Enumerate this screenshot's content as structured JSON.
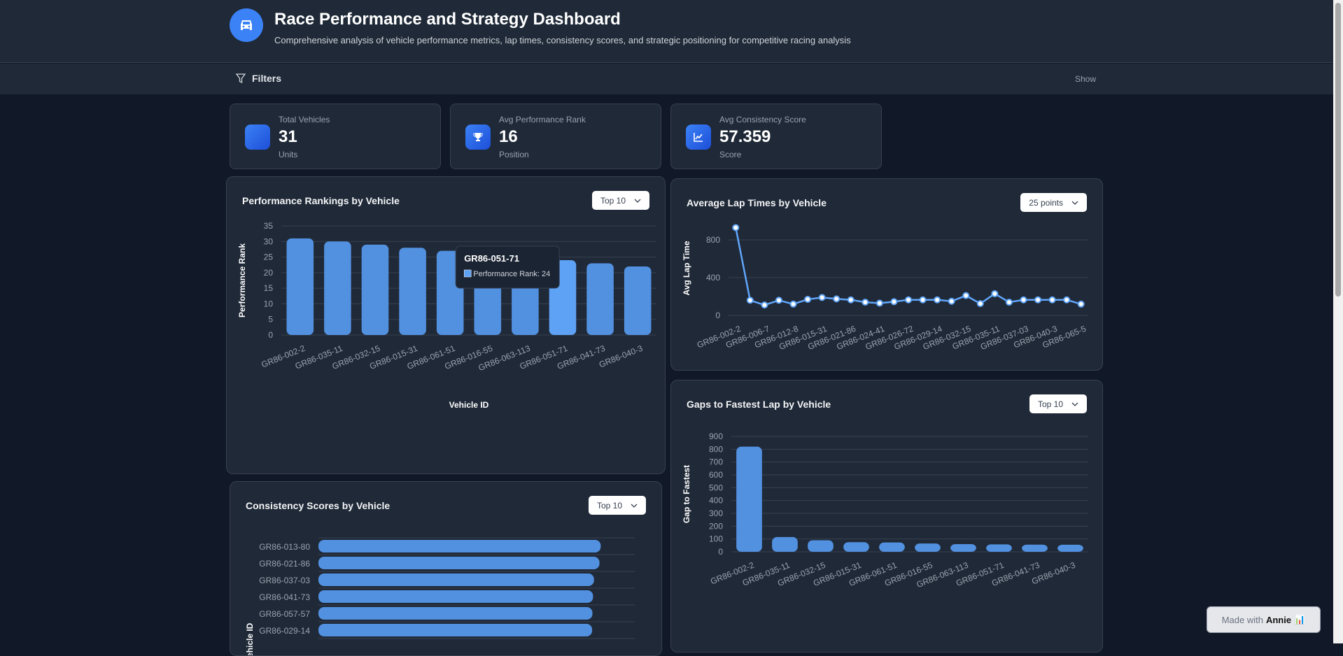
{
  "header": {
    "title": "Race Performance and Strategy Dashboard",
    "subtitle": "Comprehensive analysis of vehicle performance metrics, lap times, consistency scores, and strategic positioning for competitive racing analysis",
    "logo_icon": "car-icon"
  },
  "filters": {
    "label": "Filters",
    "toggle": "Show"
  },
  "kpis": [
    {
      "label": "Total Vehicles",
      "value": "31",
      "unit": "Units",
      "icon": "car-icon"
    },
    {
      "label": "Avg Performance Rank",
      "value": "16",
      "unit": "Position",
      "icon": "trophy-icon"
    },
    {
      "label": "Avg Consistency Score",
      "value": "57.359",
      "unit": "Score",
      "icon": "line-chart-icon"
    }
  ],
  "accent": "#3b82f6",
  "chart_data": [
    {
      "id": "rank",
      "type": "bar",
      "title": "Performance Rankings by Vehicle",
      "select": "Top 10",
      "xlabel": "Vehicle ID",
      "ylabel": "Performance Rank",
      "ylim": [
        0,
        35
      ],
      "yticks": [
        0,
        5,
        10,
        15,
        20,
        25,
        30,
        35
      ],
      "grid": true,
      "categories": [
        "GR86-002-2",
        "GR86-035-11",
        "GR86-032-15",
        "GR86-015-31",
        "GR86-061-51",
        "GR86-016-55",
        "GR86-063-113",
        "GR86-051-71",
        "GR86-041-73",
        "GR86-040-3"
      ],
      "values": [
        31,
        30,
        29,
        28,
        27,
        26,
        25,
        24,
        23,
        22
      ],
      "color": "#5290e0",
      "tooltip": {
        "title": "GR86-051-71",
        "text": "Performance Rank: 24"
      }
    },
    {
      "id": "lap",
      "type": "line",
      "title": "Average Lap Times by Vehicle",
      "select": "25 points",
      "xlabel": "Vehicle ID",
      "ylabel": "Avg Lap Time",
      "ylim": [
        0,
        1000
      ],
      "yticks": [
        0,
        400,
        800
      ],
      "grid": true,
      "categories": [
        "GR86-002-2",
        "",
        "GR86-006-7",
        "",
        "GR86-012-8",
        "",
        "GR86-015-31",
        "",
        "GR86-021-86",
        "",
        "GR86-024-41",
        "",
        "GR86-026-72",
        "",
        "GR86-029-14",
        "",
        "GR86-032-15",
        "",
        "GR86-035-11",
        "",
        "GR86-037-03",
        "",
        "GR86-040-3",
        "",
        "GR86-065-5"
      ],
      "values": [
        930,
        160,
        110,
        160,
        120,
        170,
        190,
        175,
        165,
        140,
        130,
        145,
        165,
        165,
        165,
        150,
        210,
        125,
        230,
        140,
        165,
        165,
        165,
        165,
        120
      ],
      "color": "#60a5fa"
    },
    {
      "id": "gap",
      "type": "bar",
      "title": "Gaps to Fastest Lap by Vehicle",
      "select": "Top 10",
      "xlabel": "",
      "ylabel": "Gap to Fastest",
      "ylim": [
        0,
        900
      ],
      "yticks": [
        0,
        100,
        200,
        300,
        400,
        500,
        600,
        700,
        800,
        900
      ],
      "grid": true,
      "categories": [
        "GR86-002-2",
        "GR86-035-11",
        "GR86-032-15",
        "GR86-015-31",
        "GR86-061-51",
        "GR86-016-55",
        "GR86-063-113",
        "GR86-051-71",
        "GR86-041-73",
        "GR86-040-3"
      ],
      "values": [
        820,
        115,
        90,
        75,
        73,
        65,
        60,
        58,
        56,
        55
      ],
      "color": "#5290e0"
    },
    {
      "id": "cons",
      "type": "hbar",
      "title": "Consistency Scores by Vehicle",
      "select": "Top 10",
      "ylabel": "Vehicle ID",
      "grid": true,
      "categories": [
        "GR86-013-80",
        "GR86-021-86",
        "GR86-037-03",
        "GR86-041-73",
        "GR86-057-57",
        "GR86-029-14"
      ],
      "values": [
        92,
        91.6,
        89.8,
        89.5,
        89.3,
        89.2
      ],
      "color": "#5290e0"
    }
  ],
  "badge": {
    "text": "Made with",
    "brand": "Annie"
  }
}
